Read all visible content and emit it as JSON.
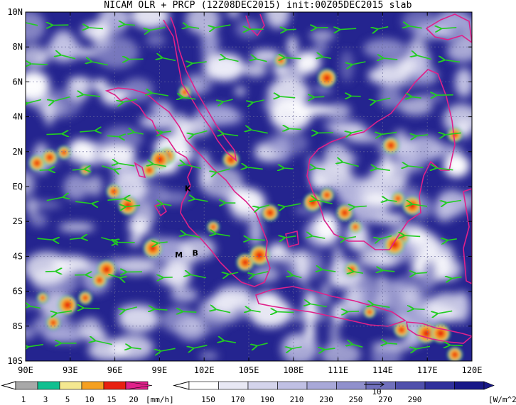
{
  "title": "NICAM OLR + PRCP (12Z08DEC2015) init:00Z05DEC2015 slab",
  "map": {
    "lat_labels": [
      "10N",
      "8N",
      "6N",
      "4N",
      "2N",
      "EQ",
      "2S",
      "4S",
      "6S",
      "8S",
      "10S"
    ],
    "lon_labels": [
      "90E",
      "93E",
      "96E",
      "99E",
      "102E",
      "105E",
      "108E",
      "111E",
      "114E",
      "117E",
      "120E"
    ],
    "lat_range": [
      -10,
      10
    ],
    "lon_range": [
      90,
      120
    ],
    "grid": true,
    "place_labels": [
      {
        "text": "K",
        "lon": 100.9,
        "lat": -0.1
      },
      {
        "text": "M",
        "lon": 100.3,
        "lat": -3.9
      },
      {
        "text": "B",
        "lon": 101.4,
        "lat": -3.8
      }
    ],
    "vector_color": "#22cc22",
    "coastline_color": "#e0208a"
  },
  "prcp_bar": {
    "ticks": [
      "1",
      "3",
      "5",
      "10",
      "15",
      "20"
    ],
    "unit": "[mm/h]",
    "colors": [
      "#a8a8a8",
      "#10c090",
      "#f4e890",
      "#f5a020",
      "#e82010",
      "#e0208a"
    ]
  },
  "olr_bar": {
    "ticks": [
      "150",
      "170",
      "190",
      "210",
      "230",
      "250",
      "270",
      "290"
    ],
    "unit": "[W/m^2]",
    "colors": [
      "#ffffff",
      "#e8e8f4",
      "#d4d4ec",
      "#c0c0e4",
      "#a8a8d8",
      "#9090cc",
      "#7070bc",
      "#5050ac",
      "#30309c",
      "#181888"
    ]
  },
  "vector_ref": "10"
}
